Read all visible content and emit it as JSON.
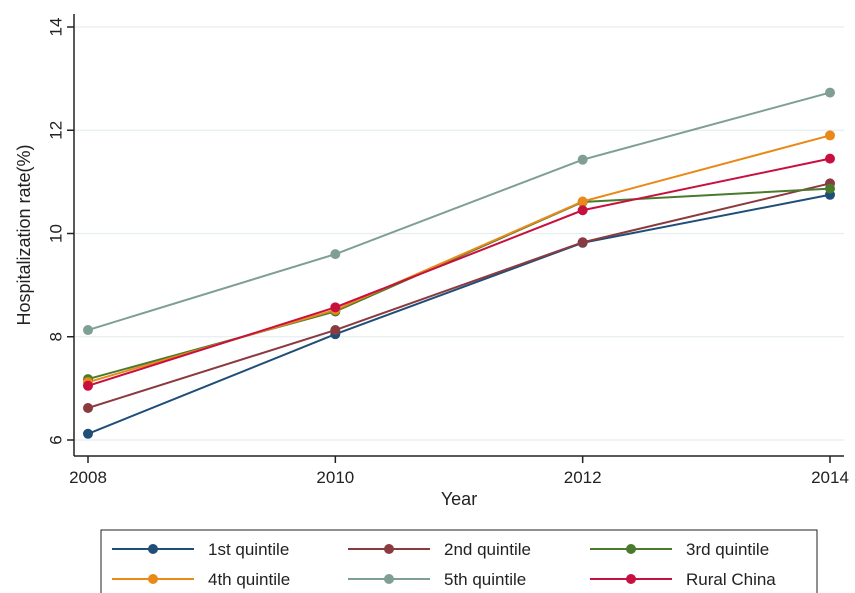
{
  "chart_data": {
    "type": "line",
    "title": "",
    "xlabel": "Year",
    "ylabel": "Hospitalization rate(%)",
    "x": [
      2008,
      2010,
      2012,
      2014
    ],
    "x_ticks": [
      "2008",
      "2010",
      "2012",
      "2014"
    ],
    "y_ticks": [
      "6",
      "8",
      "10",
      "12",
      "14"
    ],
    "xlim": [
      2008,
      2014
    ],
    "ylim": [
      5.8,
      14.2
    ],
    "grid": true,
    "legend_position": "bottom",
    "series": [
      {
        "name": "1st quintile",
        "values": [
          6.12,
          8.05,
          9.82,
          10.75
        ],
        "color": "#1f4e79"
      },
      {
        "name": "2nd quintile",
        "values": [
          6.62,
          8.13,
          9.83,
          10.97
        ],
        "color": "#8b3a3f"
      },
      {
        "name": "3rd quintile",
        "values": [
          7.18,
          8.49,
          10.61,
          10.87
        ],
        "color": "#4a7a2c"
      },
      {
        "name": "4th quintile",
        "values": [
          7.12,
          8.52,
          10.62,
          11.9
        ],
        "color": "#e8891a"
      },
      {
        "name": "5th quintile",
        "values": [
          8.13,
          9.6,
          11.43,
          12.73
        ],
        "color": "#7f9f94"
      },
      {
        "name": "Rural China",
        "values": [
          7.05,
          8.57,
          10.45,
          11.45
        ],
        "color": "#c8103f"
      }
    ]
  }
}
